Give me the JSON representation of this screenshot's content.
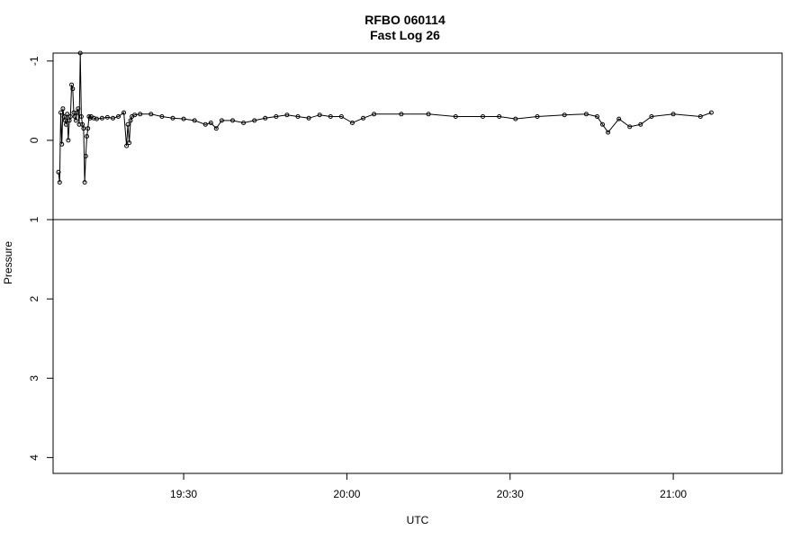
{
  "chart_data": {
    "type": "line",
    "title": "RFBO 060114",
    "subtitle": "Fast Log 26",
    "xlabel": "UTC",
    "ylabel": "Pressure",
    "y_axis_reversed": true,
    "ylim": [
      -1.1,
      4.2
    ],
    "xlim": [
      "19:06",
      "21:20"
    ],
    "x_ticks": [
      "19:30",
      "20:00",
      "20:30",
      "21:00"
    ],
    "y_ticks": [
      "-1",
      "0",
      "1",
      "2",
      "3",
      "4"
    ],
    "reference_line_y": 1,
    "markers": "open-circle",
    "grid": false,
    "legend": "none",
    "series": [
      {
        "x": [
          "19:07:00",
          "19:07:12",
          "19:07:24",
          "19:07:36",
          "19:07:48",
          "19:08:00",
          "19:08:12",
          "19:08:24",
          "19:08:36",
          "19:08:48",
          "19:09:00",
          "19:09:12",
          "19:09:24",
          "19:09:36",
          "19:09:48",
          "19:10:00",
          "19:10:12",
          "19:10:24",
          "19:10:36",
          "19:10:48",
          "19:11:00",
          "19:11:12",
          "19:11:24",
          "19:11:36",
          "19:11:48",
          "19:12:00",
          "19:12:12",
          "19:12:24",
          "19:12:36",
          "19:12:48",
          "19:13:00",
          "19:13:30",
          "19:14:00",
          "19:15:00",
          "19:16:00",
          "19:17:00",
          "19:18:00",
          "19:19:00",
          "19:19:30",
          "19:19:45",
          "19:20:00",
          "19:20:15",
          "19:20:30",
          "19:21:00",
          "19:22:00",
          "19:24:00",
          "19:26:00",
          "19:28:00",
          "19:30:00",
          "19:32:00",
          "19:34:00",
          "19:35:00",
          "19:36:00",
          "19:37:00",
          "19:39:00",
          "19:41:00",
          "19:43:00",
          "19:45:00",
          "19:47:00",
          "19:49:00",
          "19:51:00",
          "19:53:00",
          "19:55:00",
          "19:57:00",
          "19:59:00",
          "20:01:00",
          "20:03:00",
          "20:05:00",
          "20:10:00",
          "20:15:00",
          "20:20:00",
          "20:25:00",
          "20:28:00",
          "20:31:00",
          "20:35:00",
          "20:40:00",
          "20:44:00",
          "20:46:00",
          "20:47:00",
          "20:48:00",
          "20:50:00",
          "20:52:00",
          "20:54:00",
          "20:56:00",
          "21:00:00",
          "21:05:00",
          "21:07:00"
        ],
        "values": [
          0.4,
          0.53,
          -0.35,
          0.05,
          -0.4,
          -0.3,
          -0.25,
          -0.2,
          -0.33,
          0.0,
          -0.25,
          -0.3,
          -0.7,
          -0.65,
          -0.35,
          -0.3,
          -0.25,
          -0.35,
          -0.4,
          -0.2,
          -1.1,
          -0.3,
          -0.2,
          -0.15,
          0.53,
          0.2,
          -0.05,
          -0.15,
          -0.3,
          -0.28,
          -0.3,
          -0.28,
          -0.27,
          -0.28,
          -0.29,
          -0.28,
          -0.3,
          -0.35,
          0.07,
          -0.2,
          0.03,
          -0.25,
          -0.3,
          -0.32,
          -0.33,
          -0.33,
          -0.3,
          -0.28,
          -0.27,
          -0.25,
          -0.2,
          -0.22,
          -0.15,
          -0.25,
          -0.25,
          -0.22,
          -0.25,
          -0.28,
          -0.3,
          -0.32,
          -0.3,
          -0.28,
          -0.32,
          -0.3,
          -0.3,
          -0.22,
          -0.28,
          -0.33,
          -0.33,
          -0.33,
          -0.3,
          -0.3,
          -0.3,
          -0.27,
          -0.3,
          -0.32,
          -0.33,
          -0.3,
          -0.2,
          -0.1,
          -0.27,
          -0.17,
          -0.2,
          -0.3,
          -0.33,
          -0.3,
          -0.35
        ]
      }
    ]
  }
}
